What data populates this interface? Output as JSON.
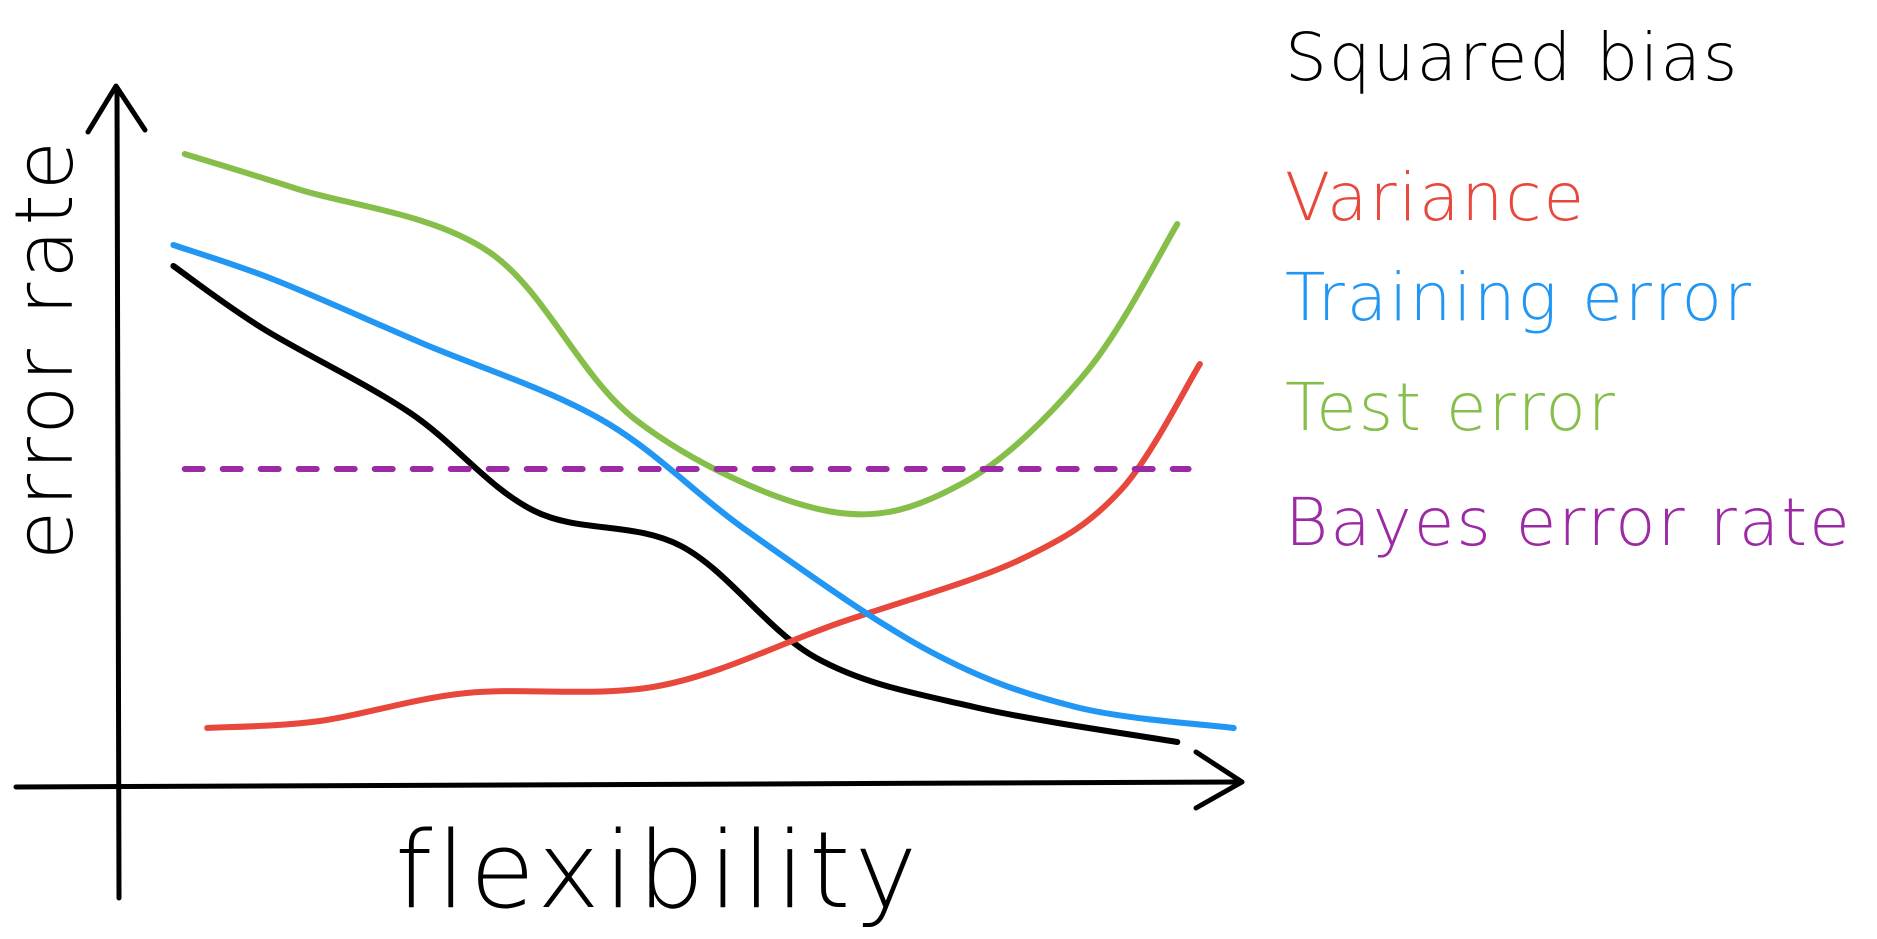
{
  "chart_data": {
    "type": "line",
    "title": "",
    "xlabel": "flexibility",
    "ylabel": "error rate",
    "xlim": [
      0,
      10
    ],
    "ylim": [
      0,
      10
    ],
    "grid": false,
    "legend_placement": "right",
    "series": [
      {
        "name": "Squared bias",
        "color": "#000000",
        "style": "solid",
        "points": [
          [
            0.5,
            7.4
          ],
          [
            1.3,
            6.5
          ],
          [
            2.6,
            5.3
          ],
          [
            3.7,
            3.9
          ],
          [
            5.0,
            3.4
          ],
          [
            6.2,
            1.8
          ],
          [
            7.6,
            1.1
          ],
          [
            9.4,
            0.6
          ]
        ]
      },
      {
        "name": "Variance",
        "color": "#e8473c",
        "style": "solid",
        "points": [
          [
            0.8,
            0.8
          ],
          [
            1.8,
            0.9
          ],
          [
            3.1,
            1.3
          ],
          [
            4.8,
            1.4
          ],
          [
            6.4,
            2.3
          ],
          [
            8.0,
            3.2
          ],
          [
            8.9,
            4.2
          ],
          [
            9.6,
            6.0
          ]
        ]
      },
      {
        "name": "Training error",
        "color": "#2196f3",
        "style": "solid",
        "points": [
          [
            0.5,
            7.7
          ],
          [
            1.4,
            7.2
          ],
          [
            2.7,
            6.3
          ],
          [
            4.3,
            5.2
          ],
          [
            5.6,
            3.6
          ],
          [
            7.2,
            1.9
          ],
          [
            8.5,
            1.1
          ],
          [
            9.9,
            0.8
          ]
        ]
      },
      {
        "name": "Test error",
        "color": "#86be4a",
        "style": "solid",
        "points": [
          [
            0.6,
            9.0
          ],
          [
            1.6,
            8.5
          ],
          [
            3.3,
            7.6
          ],
          [
            4.6,
            5.2
          ],
          [
            6.3,
            3.9
          ],
          [
            7.5,
            4.3
          ],
          [
            8.6,
            5.9
          ],
          [
            9.4,
            8.0
          ]
        ]
      },
      {
        "name": "Bayes error rate",
        "color": "#9c2aa4",
        "style": "dashed",
        "points": [
          [
            0.6,
            4.5
          ],
          [
            9.5,
            4.5
          ]
        ]
      }
    ]
  }
}
